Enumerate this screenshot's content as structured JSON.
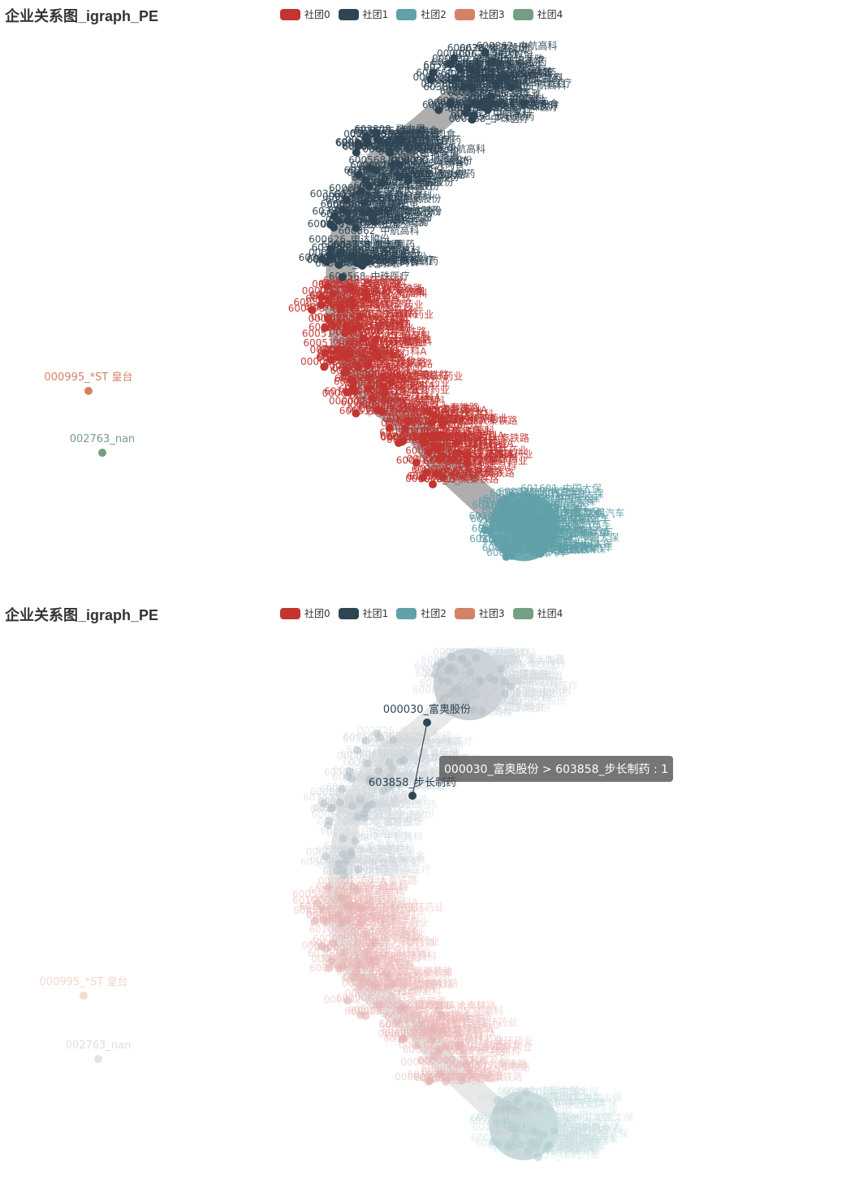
{
  "title": "企业关系图_igraph_PE",
  "legend": [
    {
      "label": "社团0",
      "color": "#c23531"
    },
    {
      "label": "社团1",
      "color": "#2f4554"
    },
    {
      "label": "社团2",
      "color": "#61a0a8"
    },
    {
      "label": "社团3",
      "color": "#d48265"
    },
    {
      "label": "社团4",
      "color": "#749f83"
    }
  ],
  "visible_node_labels": {
    "community_1": [
      "600568_中珠医疗",
      "603808_歌力思",
      "600862_中航高科",
      "603858_步长制药",
      "000030_富奥股份",
      "600626_申达股份",
      "603605_珀莱雅",
      "002726_龙大肉食"
    ],
    "community_0": [
      "600095_哈高科",
      "600513_联环药业",
      "000002_万科A",
      "601006_大秦铁路"
    ],
    "community_2": [
      "600335_国机汽车",
      "601601_中国太保"
    ],
    "community_3": [
      "000995_*ST 皇台"
    ],
    "community_4": [
      "002763_nan"
    ]
  },
  "top_panel": {
    "isolated_nodes": [
      {
        "label": "000995_*ST 皇台",
        "community": 3
      },
      {
        "label": "002763_nan",
        "community": 4
      }
    ]
  },
  "bottom_panel": {
    "highlighted_nodes": [
      {
        "label": "000030_富奥股份",
        "community": 1
      },
      {
        "label": "603858_步长制药",
        "community": 1
      }
    ],
    "tooltip": "000030_富奥股份 > 603858_步长制药 : 1",
    "faded_isolated": [
      {
        "label": "000995_*ST 皇台"
      },
      {
        "label": "002763_nan"
      }
    ]
  }
}
